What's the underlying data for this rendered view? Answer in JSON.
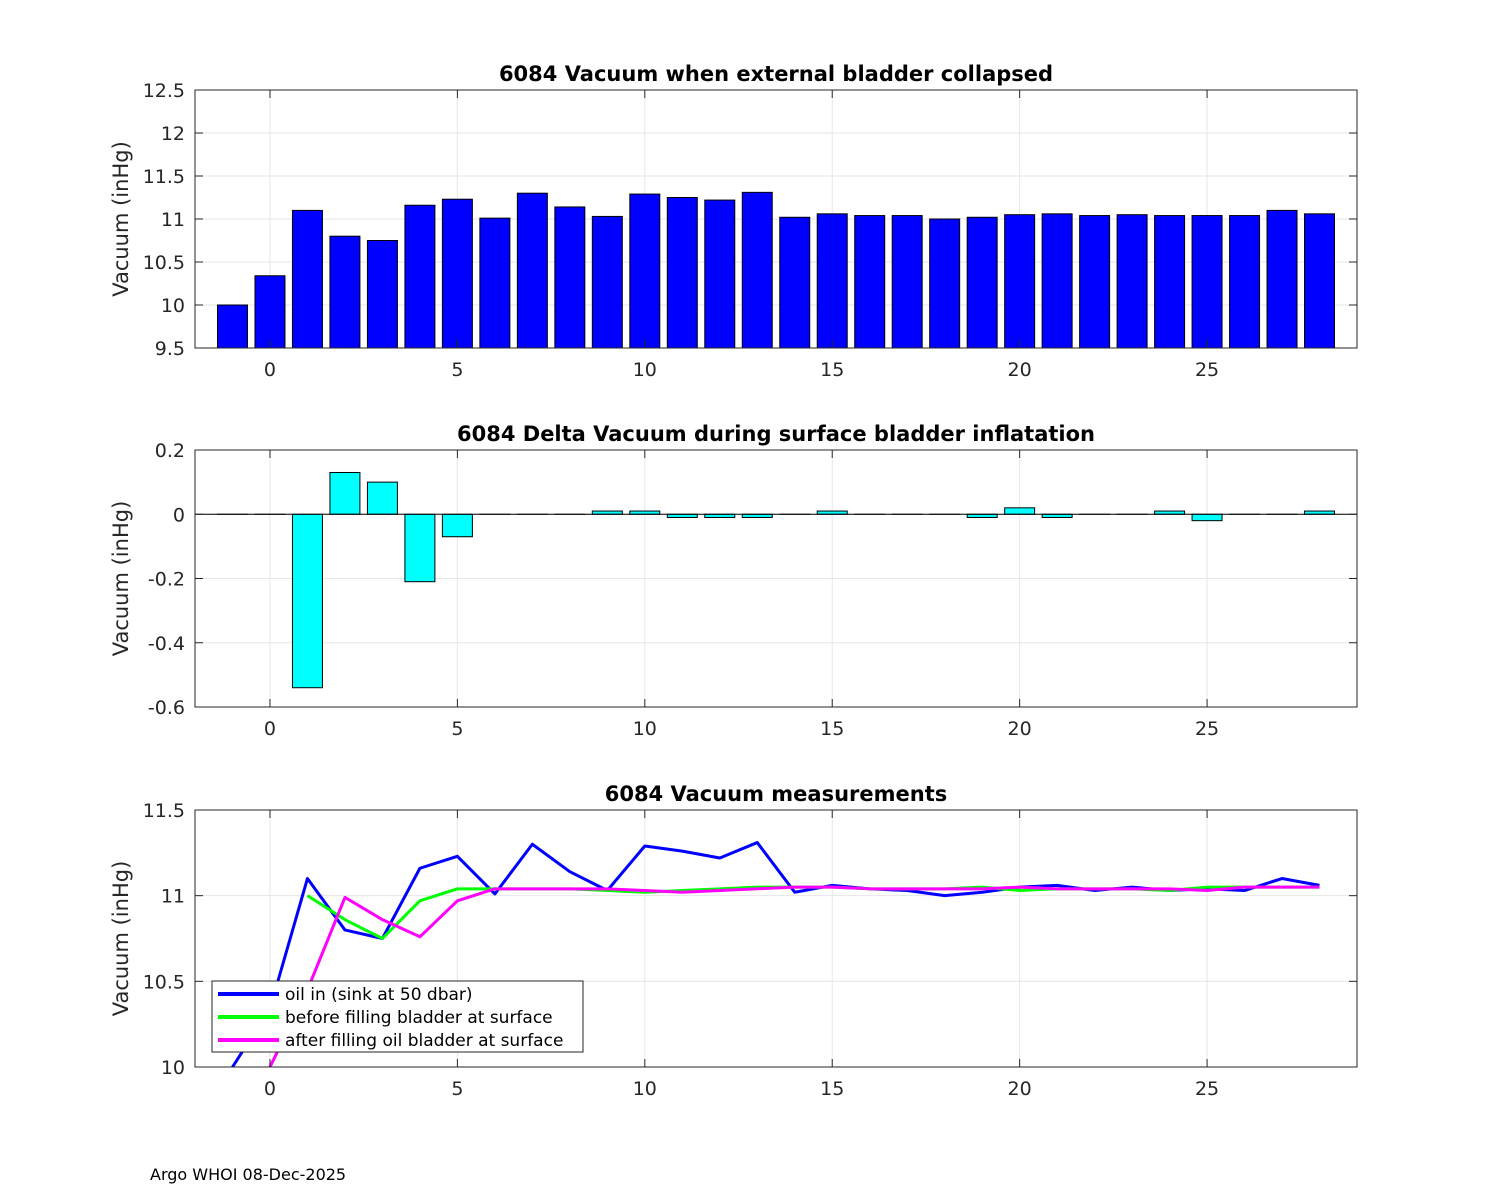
{
  "footer": "Argo WHOI 08-Dec-2025",
  "colors": {
    "blue": "#0000ff",
    "cyan": "#00ffff",
    "green": "#00ff00",
    "magenta": "#ff00ff",
    "grid": "#e6e6e6"
  },
  "chart_data": [
    {
      "type": "bar",
      "title": "6084 Vacuum when external bladder collapsed",
      "xlabel": "",
      "ylabel": "Vacuum (inHg)",
      "xlim": [
        -2,
        29
      ],
      "ylim": [
        9.5,
        12.5
      ],
      "xticks": [
        0,
        5,
        10,
        15,
        20,
        25
      ],
      "yticks": [
        9.5,
        10,
        10.5,
        11,
        11.5,
        12,
        12.5
      ],
      "ytick_labels": [
        "9.5",
        "10",
        "10.5",
        "11",
        "11.5",
        "12",
        "12.5"
      ],
      "grid": true,
      "color": "#0000ff",
      "x": [
        -1,
        0,
        1,
        2,
        3,
        4,
        5,
        6,
        7,
        8,
        9,
        10,
        11,
        12,
        13,
        14,
        15,
        16,
        17,
        18,
        19,
        20,
        21,
        22,
        23,
        24,
        25,
        26,
        27,
        28
      ],
      "values": [
        10.0,
        10.34,
        11.1,
        10.8,
        10.75,
        11.16,
        11.23,
        11.01,
        11.3,
        11.14,
        11.03,
        11.29,
        11.25,
        11.22,
        11.31,
        11.02,
        11.06,
        11.04,
        11.04,
        11.0,
        11.02,
        11.05,
        11.06,
        11.04,
        11.05,
        11.04,
        11.04,
        11.04,
        11.1,
        11.06
      ]
    },
    {
      "type": "bar",
      "title": "6084 Delta Vacuum during surface bladder inflatation",
      "xlabel": "",
      "ylabel": "Vacuum (inHg)",
      "xlim": [
        -2,
        29
      ],
      "ylim": [
        -0.6,
        0.2
      ],
      "xticks": [
        0,
        5,
        10,
        15,
        20,
        25
      ],
      "yticks": [
        -0.6,
        -0.4,
        -0.2,
        0,
        0.2
      ],
      "ytick_labels": [
        "-0.6",
        "-0.4",
        "-0.2",
        "0",
        "0.2"
      ],
      "grid": true,
      "color": "#00ffff",
      "x": [
        -1,
        0,
        1,
        2,
        3,
        4,
        5,
        6,
        7,
        8,
        9,
        10,
        11,
        12,
        13,
        14,
        15,
        16,
        17,
        18,
        19,
        20,
        21,
        22,
        23,
        24,
        25,
        26,
        27,
        28
      ],
      "values": [
        0,
        0,
        -0.54,
        0.13,
        0.1,
        -0.21,
        -0.07,
        0,
        0,
        0,
        0.01,
        0.01,
        -0.01,
        -0.01,
        -0.01,
        0,
        0.01,
        0,
        0,
        0,
        -0.01,
        0.02,
        -0.01,
        0,
        0,
        0.01,
        -0.02,
        0,
        0,
        0.01
      ]
    },
    {
      "type": "line",
      "title": "6084 Vacuum measurements",
      "xlabel": "",
      "ylabel": "Vacuum (inHg)",
      "xlim": [
        -2,
        29
      ],
      "ylim": [
        10,
        11.5
      ],
      "xticks": [
        0,
        5,
        10,
        15,
        20,
        25
      ],
      "yticks": [
        10,
        10.5,
        11,
        11.5
      ],
      "ytick_labels": [
        "10",
        "10.5",
        "11",
        "11.5"
      ],
      "grid": true,
      "legend_position": "bottom-left",
      "series": [
        {
          "name": "oil in (sink at 50 dbar)",
          "color": "#0000ff",
          "x": [
            -1,
            0,
            1,
            2,
            3,
            4,
            5,
            6,
            7,
            8,
            9,
            10,
            11,
            12,
            13,
            14,
            15,
            16,
            17,
            18,
            19,
            20,
            21,
            22,
            23,
            24,
            25,
            26,
            27,
            28
          ],
          "values": [
            10.0,
            10.34,
            11.1,
            10.8,
            10.75,
            11.16,
            11.23,
            11.01,
            11.3,
            11.14,
            11.03,
            11.29,
            11.26,
            11.22,
            11.31,
            11.02,
            11.06,
            11.04,
            11.03,
            11.0,
            11.02,
            11.05,
            11.06,
            11.03,
            11.05,
            11.03,
            11.04,
            11.03,
            11.1,
            11.06
          ]
        },
        {
          "name": "before filling bladder at surface",
          "color": "#00ff00",
          "x": [
            1,
            2,
            3,
            4,
            5,
            6,
            7,
            8,
            9,
            10,
            11,
            12,
            13,
            14,
            15,
            16,
            17,
            18,
            19,
            20,
            21,
            22,
            23,
            24,
            25,
            26,
            27,
            28
          ],
          "values": [
            11.0,
            10.86,
            10.75,
            10.97,
            11.04,
            11.04,
            11.04,
            11.04,
            11.03,
            11.02,
            11.03,
            11.04,
            11.05,
            11.05,
            11.05,
            11.04,
            11.04,
            11.04,
            11.05,
            11.03,
            11.04,
            11.04,
            11.04,
            11.03,
            11.05,
            11.05,
            11.05,
            11.05
          ]
        },
        {
          "name": "after filling oil bladder at surface",
          "color": "#ff00ff",
          "x": [
            0,
            1,
            2,
            3,
            4,
            5,
            6,
            7,
            8,
            9,
            10,
            11,
            12,
            13,
            14,
            15,
            16,
            17,
            18,
            19,
            20,
            21,
            22,
            23,
            24,
            25,
            26,
            27,
            28
          ],
          "values": [
            10.0,
            10.45,
            10.99,
            10.86,
            10.76,
            10.97,
            11.04,
            11.04,
            11.04,
            11.04,
            11.03,
            11.02,
            11.03,
            11.04,
            11.05,
            11.05,
            11.04,
            11.04,
            11.04,
            11.04,
            11.05,
            11.04,
            11.04,
            11.04,
            11.04,
            11.03,
            11.05,
            11.05,
            11.05
          ]
        }
      ]
    }
  ]
}
